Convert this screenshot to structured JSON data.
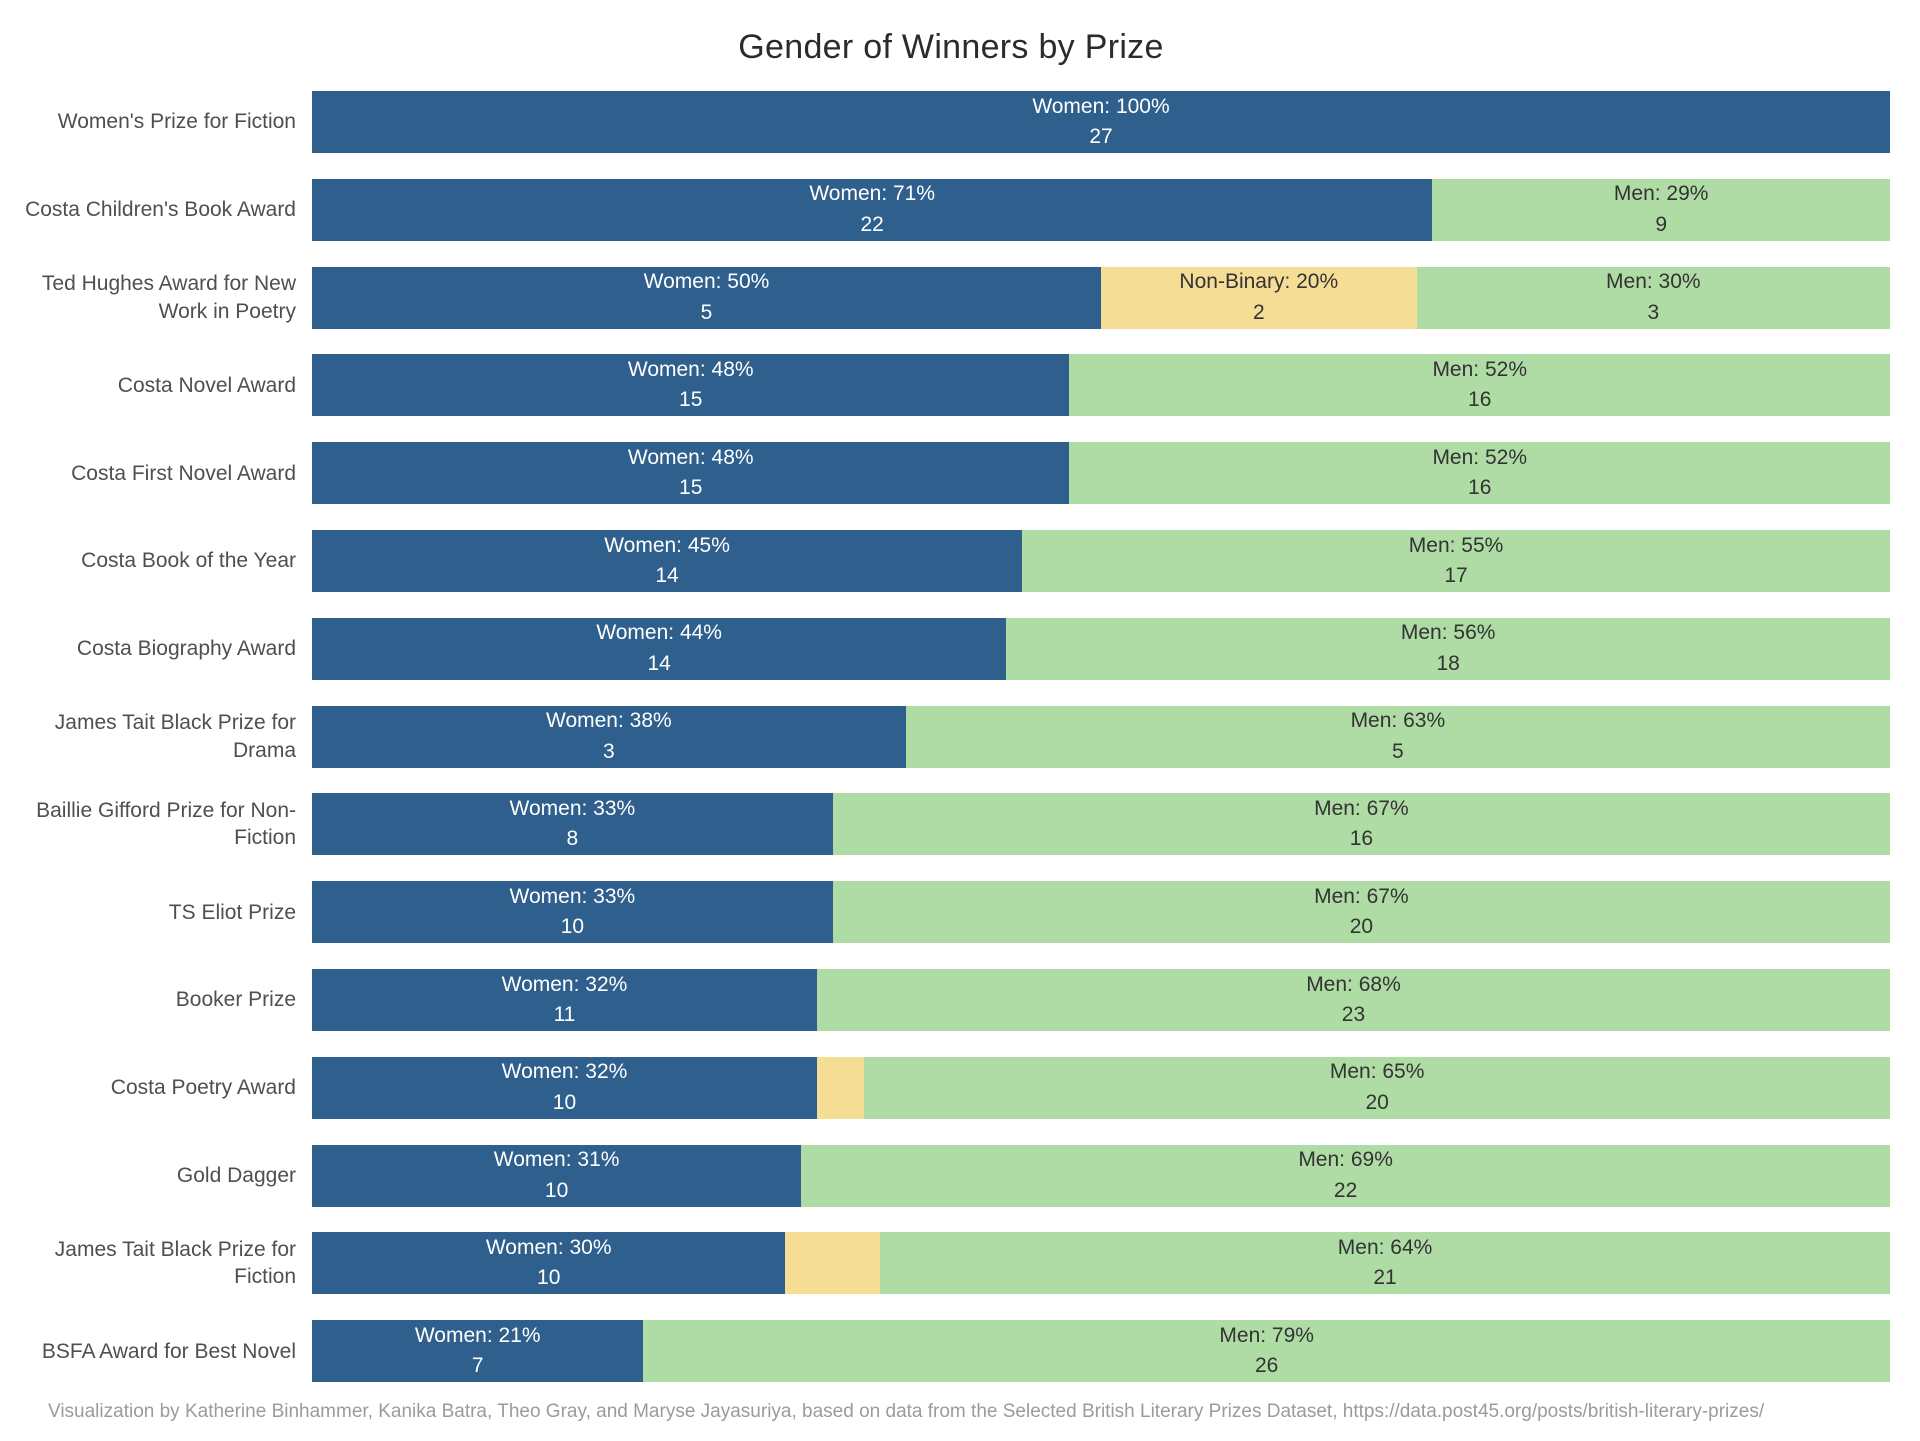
{
  "title": "Gender of Winners by Prize",
  "footer": "Visualization by Katherine Binhammer, Kanika Batra, Theo Gray, and Maryse Jayasuriya, based on data from the Selected British Literary Prizes Dataset, https://data.post45.org/posts/british-literary-prizes/",
  "colors": {
    "Women": {
      "bg": "#2f5f8c",
      "text": "#ffffff"
    },
    "Non-Binary": {
      "bg": "#f6dd96",
      "text": "#333333"
    },
    "Men": {
      "bg": "#aedca4",
      "text": "#333333"
    }
  },
  "chart_data": {
    "type": "bar",
    "orientation": "horizontal",
    "stacked": true,
    "title": "Gender of Winners by Prize",
    "xlabel": "",
    "ylabel": "",
    "x_range_percent": [
      0,
      100
    ],
    "grid": false,
    "legend": false,
    "groups": [
      "Women",
      "Non-Binary",
      "Men"
    ],
    "rows": [
      {
        "prize": "Women's Prize for Fiction",
        "segments": [
          {
            "group": "Women",
            "percent": 100,
            "count": "27",
            "label": "Women: 100%"
          }
        ]
      },
      {
        "prize": "Costa Children's Book Award",
        "segments": [
          {
            "group": "Women",
            "percent": 71,
            "count": "22",
            "label": "Women: 71%"
          },
          {
            "group": "Men",
            "percent": 29,
            "count": "9",
            "label": "Men: 29%"
          }
        ]
      },
      {
        "prize": "Ted Hughes Award for New Work in Poetry",
        "segments": [
          {
            "group": "Women",
            "percent": 50,
            "count": "5",
            "label": "Women: 50%"
          },
          {
            "group": "Non-Binary",
            "percent": 20,
            "count": "2",
            "label": "Non-Binary: 20%"
          },
          {
            "group": "Men",
            "percent": 30,
            "count": "3",
            "label": "Men: 30%"
          }
        ]
      },
      {
        "prize": "Costa Novel Award",
        "segments": [
          {
            "group": "Women",
            "percent": 48,
            "count": "15",
            "label": "Women: 48%"
          },
          {
            "group": "Men",
            "percent": 52,
            "count": "16",
            "label": "Men: 52%"
          }
        ]
      },
      {
        "prize": "Costa First Novel Award",
        "segments": [
          {
            "group": "Women",
            "percent": 48,
            "count": "15",
            "label": "Women: 48%"
          },
          {
            "group": "Men",
            "percent": 52,
            "count": "16",
            "label": "Men: 52%"
          }
        ]
      },
      {
        "prize": "Costa Book of the Year",
        "segments": [
          {
            "group": "Women",
            "percent": 45,
            "count": "14",
            "label": "Women: 45%"
          },
          {
            "group": "Men",
            "percent": 55,
            "count": "17",
            "label": "Men: 55%"
          }
        ]
      },
      {
        "prize": "Costa Biography Award",
        "segments": [
          {
            "group": "Women",
            "percent": 44,
            "count": "14",
            "label": "Women: 44%"
          },
          {
            "group": "Men",
            "percent": 56,
            "count": "18",
            "label": "Men: 56%"
          }
        ]
      },
      {
        "prize": "James Tait Black Prize for Drama",
        "segments": [
          {
            "group": "Women",
            "percent": 38,
            "count": "3",
            "label": "Women: 38%"
          },
          {
            "group": "Men",
            "percent": 63,
            "count": "5",
            "label": "Men: 63%"
          }
        ]
      },
      {
        "prize": "Baillie Gifford Prize for Non-Fiction",
        "segments": [
          {
            "group": "Women",
            "percent": 33,
            "count": "8",
            "label": "Women: 33%"
          },
          {
            "group": "Men",
            "percent": 67,
            "count": "16",
            "label": "Men: 67%"
          }
        ]
      },
      {
        "prize": "TS Eliot Prize",
        "segments": [
          {
            "group": "Women",
            "percent": 33,
            "count": "10",
            "label": "Women: 33%"
          },
          {
            "group": "Men",
            "percent": 67,
            "count": "20",
            "label": "Men: 67%"
          }
        ]
      },
      {
        "prize": "Booker Prize",
        "segments": [
          {
            "group": "Women",
            "percent": 32,
            "count": "11",
            "label": "Women: 32%"
          },
          {
            "group": "Men",
            "percent": 68,
            "count": "23",
            "label": "Men: 68%"
          }
        ]
      },
      {
        "prize": "Costa Poetry Award",
        "segments": [
          {
            "group": "Women",
            "percent": 32,
            "count": "10",
            "label": "Women: 32%"
          },
          {
            "group": "Non-Binary",
            "percent": 3,
            "count": null,
            "label": null
          },
          {
            "group": "Men",
            "percent": 65,
            "count": "20",
            "label": "Men: 65%"
          }
        ]
      },
      {
        "prize": "Gold Dagger",
        "segments": [
          {
            "group": "Women",
            "percent": 31,
            "count": "10",
            "label": "Women: 31%"
          },
          {
            "group": "Men",
            "percent": 69,
            "count": "22",
            "label": "Men: 69%"
          }
        ]
      },
      {
        "prize": "James Tait Black Prize for Fiction",
        "segments": [
          {
            "group": "Women",
            "percent": 30,
            "count": "10",
            "label": "Women: 30%"
          },
          {
            "group": "Non-Binary",
            "percent": 6,
            "count": null,
            "label": null
          },
          {
            "group": "Men",
            "percent": 64,
            "count": "21",
            "label": "Men: 64%"
          }
        ]
      },
      {
        "prize": "BSFA Award for Best Novel",
        "segments": [
          {
            "group": "Women",
            "percent": 21,
            "count": "7",
            "label": "Women: 21%"
          },
          {
            "group": "Men",
            "percent": 79,
            "count": "26",
            "label": "Men: 79%"
          }
        ]
      }
    ]
  }
}
